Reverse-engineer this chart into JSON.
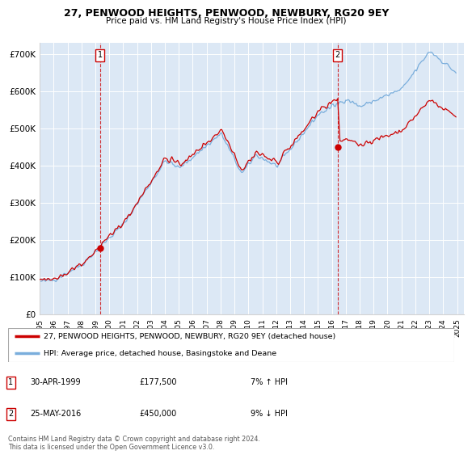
{
  "title": "27, PENWOOD HEIGHTS, PENWOOD, NEWBURY, RG20 9EY",
  "subtitle": "Price paid vs. HM Land Registry's House Price Index (HPI)",
  "ylabel_ticks": [
    "£0",
    "£100K",
    "£200K",
    "£300K",
    "£400K",
    "£500K",
    "£600K",
    "£700K"
  ],
  "ytick_values": [
    0,
    100000,
    200000,
    300000,
    400000,
    500000,
    600000,
    700000
  ],
  "ylim": [
    0,
    730000
  ],
  "xlim_start": 1995.0,
  "xlim_end": 2025.5,
  "chart_bg": "#dce8f5",
  "line_color_red": "#cc0000",
  "line_color_blue": "#7aaedc",
  "purchase1_year": 1999.33,
  "purchase1_price": 177500,
  "purchase2_year": 2016.42,
  "purchase2_price": 450000,
  "legend_line1": "27, PENWOOD HEIGHTS, PENWOOD, NEWBURY, RG20 9EY (detached house)",
  "legend_line2": "HPI: Average price, detached house, Basingstoke and Deane",
  "annotation1_date": "30-APR-1999",
  "annotation1_price": "£177,500",
  "annotation1_hpi": "7% ↑ HPI",
  "annotation2_date": "25-MAY-2016",
  "annotation2_price": "£450,000",
  "annotation2_hpi": "9% ↓ HPI",
  "footer": "Contains HM Land Registry data © Crown copyright and database right 2024.\nThis data is licensed under the Open Government Licence v3.0."
}
